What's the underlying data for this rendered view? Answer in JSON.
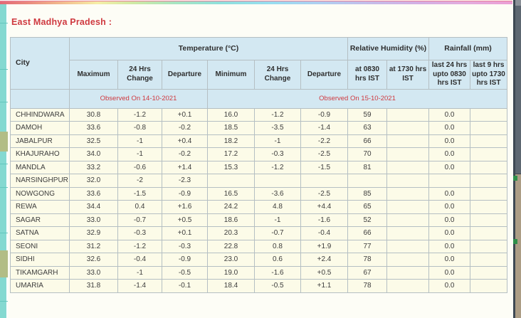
{
  "page": {
    "title": "East Madhya Pradesh :"
  },
  "table": {
    "city_header": "City",
    "groups": {
      "temperature": "Temperature (°C)",
      "humidity": "Relative Humidity (%)",
      "rainfall": "Rainfall (mm)"
    },
    "columns": [
      "Maximum",
      "24 Hrs Change",
      "Departure",
      "Minimum",
      "24 Hrs Change",
      "Departure",
      "at 0830 hrs IST",
      "at 1730 hrs IST",
      "last 24 hrs upto 0830 hrs IST",
      "last 9 hrs upto 1730 hrs IST"
    ],
    "observed_left": "Observed On 14-10-2021",
    "observed_right": "Observed On 15-10-2021",
    "rows": [
      {
        "city": "CHHINDWARA",
        "values": [
          "30.8",
          "-1.2",
          "+0.1",
          "16.0",
          "-1.2",
          "-0.9",
          "59",
          "",
          "0.0",
          ""
        ]
      },
      {
        "city": "DAMOH",
        "values": [
          "33.6",
          "-0.8",
          "-0.2",
          "18.5",
          "-3.5",
          "-1.4",
          "63",
          "",
          "0.0",
          ""
        ]
      },
      {
        "city": "JABALPUR",
        "values": [
          "32.5",
          "-1",
          "+0.4",
          "18.2",
          "-1",
          "-2.2",
          "66",
          "",
          "0.0",
          ""
        ]
      },
      {
        "city": "KHAJURAHO",
        "values": [
          "34.0",
          "-1",
          "-0.2",
          "17.2",
          "-0.3",
          "-2.5",
          "70",
          "",
          "0.0",
          ""
        ]
      },
      {
        "city": "MANDLA",
        "values": [
          "33.2",
          "-0.6",
          "+1.4",
          "15.3",
          "-1.2",
          "-1.5",
          "81",
          "",
          "0.0",
          ""
        ]
      },
      {
        "city": "NARSINGHPUR",
        "values": [
          "32.0",
          "-2",
          "-2.3",
          "",
          "",
          "",
          "",
          "",
          "",
          ""
        ]
      },
      {
        "city": "NOWGONG",
        "values": [
          "33.6",
          "-1.5",
          "-0.9",
          "16.5",
          "-3.6",
          "-2.5",
          "85",
          "",
          "0.0",
          ""
        ]
      },
      {
        "city": "REWA",
        "values": [
          "34.4",
          "0.4",
          "+1.6",
          "24.2",
          "4.8",
          "+4.4",
          "65",
          "",
          "0.0",
          ""
        ]
      },
      {
        "city": "SAGAR",
        "values": [
          "33.0",
          "-0.7",
          "+0.5",
          "18.6",
          "-1",
          "-1.6",
          "52",
          "",
          "0.0",
          ""
        ]
      },
      {
        "city": "SATNA",
        "values": [
          "32.9",
          "-0.3",
          "+0.1",
          "20.3",
          "-0.7",
          "-0.4",
          "66",
          "",
          "0.0",
          ""
        ]
      },
      {
        "city": "SEONI",
        "values": [
          "31.2",
          "-1.2",
          "-0.3",
          "22.8",
          "0.8",
          "+1.9",
          "77",
          "",
          "0.0",
          ""
        ]
      },
      {
        "city": "SIDHI",
        "values": [
          "32.6",
          "-0.4",
          "-0.9",
          "23.0",
          "0.6",
          "+2.4",
          "78",
          "",
          "0.0",
          ""
        ]
      },
      {
        "city": "TIKAMGARH",
        "values": [
          "33.0",
          "-1",
          "-0.5",
          "19.0",
          "-1.6",
          "+0.5",
          "67",
          "",
          "0.0",
          ""
        ]
      },
      {
        "city": "UMARIA",
        "values": [
          "31.8",
          "-1.4",
          "-0.1",
          "18.4",
          "-0.5",
          "+1.1",
          "78",
          "",
          "0.0",
          ""
        ]
      }
    ]
  },
  "colors": {
    "header_bg": "#d3e8f2",
    "row_bg": "#fcfbe8",
    "accent_red": "#cf3a40",
    "border": "#b5bfc3",
    "left_strip_teal": "#84d9d1",
    "left_strip_olive": "#b2bd86",
    "scrollbar_track": "#ac9d85",
    "scrollbar_thumb": "#5d6771",
    "scroll_marker_green": "#2e8f4a"
  }
}
